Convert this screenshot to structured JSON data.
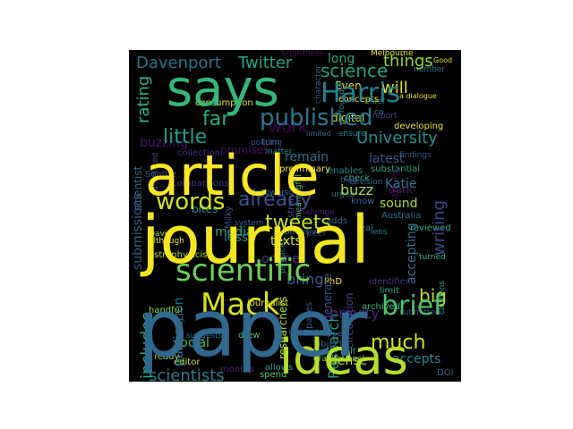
{
  "figure": {
    "background_color": "#ffffff",
    "canvas_color": "#000000"
  },
  "wordcloud": {
    "colormap": "viridis",
    "words": [
      {
        "text": "says",
        "color": "#35b779"
      },
      {
        "text": "article",
        "color": "#fde725"
      },
      {
        "text": "journal",
        "color": "#f4e61e"
      },
      {
        "text": "paper",
        "color": "#31688e"
      },
      {
        "text": "ideas",
        "color": "#b5de2b"
      },
      {
        "text": "scientific",
        "color": "#6ece58"
      },
      {
        "text": "published",
        "color": "#2a788e"
      },
      {
        "text": "Harris",
        "color": "#26828e"
      },
      {
        "text": "Mack",
        "color": "#d8e219"
      },
      {
        "text": "words",
        "color": "#d2e21b"
      },
      {
        "text": "tweets",
        "color": "#c0df25"
      },
      {
        "text": "already",
        "color": "#3b528b"
      },
      {
        "text": "science",
        "color": "#1fa187"
      },
      {
        "text": "Davenport",
        "color": "#2c728e"
      },
      {
        "text": "Twitter",
        "color": "#20a486"
      },
      {
        "text": "little",
        "color": "#1f9e89"
      },
      {
        "text": "far",
        "color": "#25ac82"
      },
      {
        "text": "will",
        "color": "#dde318"
      },
      {
        "text": "things",
        "color": "#8fd744"
      },
      {
        "text": "University",
        "color": "#21918c"
      },
      {
        "text": "brief",
        "color": "#4ac16d"
      },
      {
        "text": "much",
        "color": "#d5e21a"
      },
      {
        "text": "big",
        "color": "#bddf26"
      },
      {
        "text": "includes",
        "color": "#29af7f"
      },
      {
        "text": "scientists",
        "color": "#277f8e"
      },
      {
        "text": "rating",
        "color": "#2fb47c"
      },
      {
        "text": "work",
        "color": "#440154"
      },
      {
        "text": "long",
        "color": "#22a785"
      },
      {
        "text": "writing",
        "color": "#3e4989"
      },
      {
        "text": "Research",
        "color": "#1e9b8a"
      },
      {
        "text": "social",
        "color": "#44bf70"
      },
      {
        "text": "media",
        "color": "#26ad81"
      },
      {
        "text": "texts",
        "color": "#d0e11c"
      },
      {
        "text": "buzz",
        "color": "#a0da39"
      },
      {
        "text": "bring",
        "color": "#33638d"
      },
      {
        "text": "accepts",
        "color": "#23898e"
      },
      {
        "text": "dense",
        "color": "#c2df23"
      },
      {
        "text": "brevity",
        "color": "#482576"
      },
      {
        "text": "online",
        "color": "#46337e"
      },
      {
        "text": "accepting",
        "color": "#2e6f8e"
      },
      {
        "text": "buzzing",
        "color": "#48186a"
      },
      {
        "text": "submissions",
        "color": "#365d8d"
      },
      {
        "text": "publication",
        "color": "#2b758e"
      },
      {
        "text": "promises",
        "color": "#471365"
      },
      {
        "text": "remain",
        "color": "#2d708e"
      },
      {
        "text": "latest",
        "color": "#39568c"
      },
      {
        "text": "Katie",
        "color": "#2a778e"
      },
      {
        "text": "sound",
        "color": "#a8db34"
      },
      {
        "text": "less",
        "color": "#21918c"
      },
      {
        "text": "bites",
        "color": "#1f988b"
      },
      {
        "text": "Even",
        "color": "#dfe318"
      },
      {
        "text": "digital",
        "color": "#d8e219"
      },
      {
        "text": "Melbourne",
        "color": "#ece51b"
      },
      {
        "text": "Good",
        "color": "#e5e419"
      },
      {
        "text": "astrophysicist",
        "color": "#b2dd2d"
      },
      {
        "text": "journalist",
        "color": "#e7e419"
      },
      {
        "text": "researchers",
        "color": "#a5db36"
      },
      {
        "text": "editor",
        "color": "#c8e020"
      },
      {
        "text": "scientist",
        "color": "#31688e"
      },
      {
        "text": "halo",
        "color": "#440154"
      },
      {
        "text": "PhD",
        "color": "#fde725"
      },
      {
        "text": "months",
        "color": "#482173"
      },
      {
        "text": "Australia",
        "color": "#2c728e"
      },
      {
        "text": "DOI",
        "color": "#33638d"
      },
      {
        "text": "Seattle",
        "color": "#3e4a89"
      },
      {
        "text": "David",
        "color": "#b5de2b"
      },
      {
        "text": "Milky",
        "color": "#3b518b"
      },
      {
        "text": "Way",
        "color": "#2d718e"
      },
      {
        "text": "chief",
        "color": "#25838e"
      },
      {
        "text": "co",
        "color": "#24878e"
      },
      {
        "text": "founder",
        "color": "#287c8e"
      },
      {
        "text": "check",
        "color": "#1f9f88"
      },
      {
        "text": "preliminary",
        "color": "#fbe723"
      },
      {
        "text": "concepts",
        "color": "#f1e51d"
      },
      {
        "text": "consumption",
        "color": "#e2e418"
      },
      {
        "text": "developing",
        "color": "#e8e419"
      },
      {
        "text": "findings",
        "color": "#3a548c"
      },
      {
        "text": "report",
        "color": "#443b84"
      },
      {
        "text": "number",
        "color": "#2a788e"
      },
      {
        "text": "a dialogue",
        "color": "#dde318"
      },
      {
        "text": "substantial",
        "color": "#22a884"
      },
      {
        "text": "reviewed",
        "color": "#2ab07f"
      },
      {
        "text": "archived",
        "color": "#35b779"
      },
      {
        "text": "submitted",
        "color": "#3d4d8a"
      },
      {
        "text": "cautions",
        "color": "#1e9c89"
      },
      {
        "text": "turned",
        "color": "#2fb47c"
      },
      {
        "text": "limit",
        "color": "#23a983"
      },
      {
        "text": "identifier",
        "color": "#46337f"
      },
      {
        "text": "circulation",
        "color": "#404588"
      },
      {
        "text": "generate",
        "color": "#3b528b"
      },
      {
        "text": "real",
        "color": "#2c738e"
      },
      {
        "text": "dark",
        "color": "#481467"
      },
      {
        "text": "ranking",
        "color": "#46085c"
      },
      {
        "text": "know",
        "color": "#2f6c8e"
      },
      {
        "text": "urged",
        "color": "#2a768e"
      },
      {
        "text": "adds",
        "color": "#32658e"
      },
      {
        "text": "peer",
        "color": "#453781"
      },
      {
        "text": "unique",
        "color": "#3e4a89"
      },
      {
        "text": "object",
        "color": "#375a8c"
      },
      {
        "text": "gravitational",
        "color": "#7ad151"
      },
      {
        "text": "pages",
        "color": "#365c8d"
      },
      {
        "text": "appeal",
        "color": "#3f4788"
      },
      {
        "text": "half",
        "color": "#23a983"
      },
      {
        "text": "better",
        "color": "#4e027"
      },
      {
        "text": "allows",
        "color": "#1f968b"
      },
      {
        "text": "spend",
        "color": "#4fc26b"
      },
      {
        "text": "drew",
        "color": "#54c568"
      },
      {
        "text": "ready",
        "color": "#a2da37"
      },
      {
        "text": "handful",
        "color": "#90d743"
      },
      {
        "text": "suggests",
        "color": "#2f6b8e"
      },
      {
        "text": "surrounding",
        "color": "#3f4889"
      },
      {
        "text": "although",
        "color": "#e4e419"
      },
      {
        "text": "lens",
        "color": "#23888e"
      },
      {
        "text": "physicist",
        "color": "#21908d"
      },
      {
        "text": "astronomy",
        "color": "#3c508b"
      },
      {
        "text": "turn",
        "color": "#3d4e8a"
      },
      {
        "text": "meaningful",
        "color": "#4cc26c"
      },
      {
        "text": "challenge",
        "color": "#481f70"
      },
      {
        "text": "offensive",
        "color": "#24868e"
      },
      {
        "text": "followers",
        "color": "#2b748e"
      },
      {
        "text": "system",
        "color": "#306a8e"
      },
      {
        "text": "comparisons",
        "color": "#463480"
      },
      {
        "text": "unrelated",
        "color": "#3a538b"
      },
      {
        "text": "collection",
        "color": "#46307e"
      },
      {
        "text": "policing",
        "color": "#3b528b"
      },
      {
        "text": "matter",
        "color": "#25848e"
      },
      {
        "text": "enables",
        "color": "#228d8d"
      },
      {
        "text": "envision",
        "color": "#31678e"
      },
      {
        "text": "ensure",
        "color": "#26818e"
      },
      {
        "text": "limited",
        "color": "#2d708e"
      },
      {
        "text": "blog",
        "color": "#404688"
      },
      {
        "text": "character",
        "color": "#365d8d"
      },
      {
        "text": "brightness",
        "color": "#470e61"
      }
    ]
  }
}
